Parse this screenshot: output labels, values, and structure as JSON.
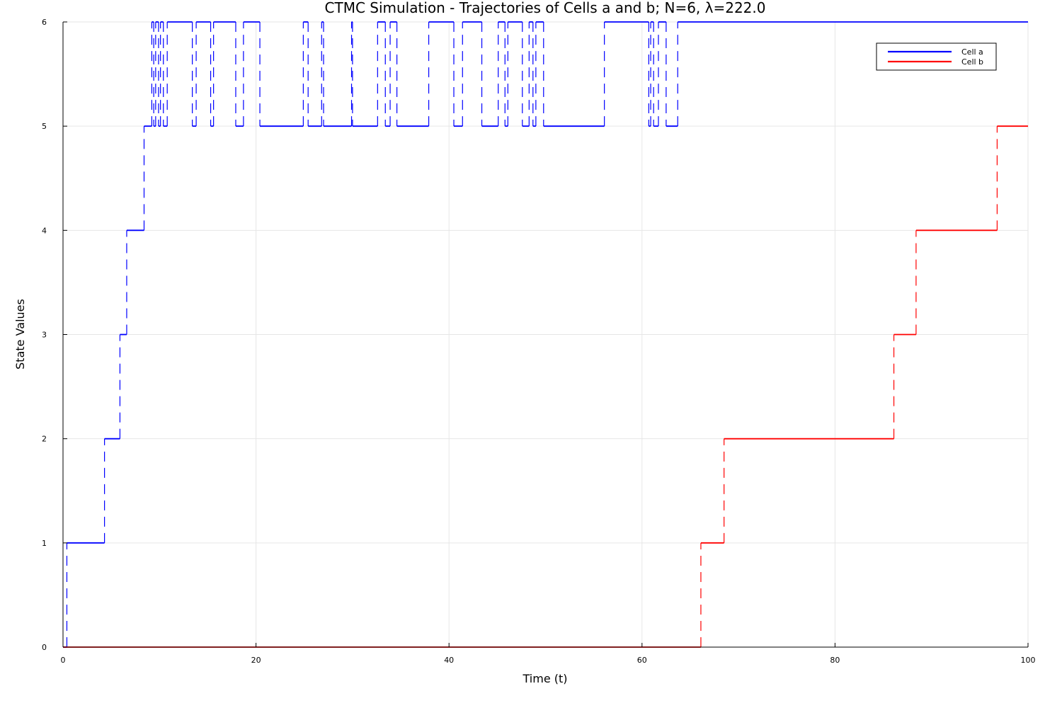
{
  "chart_data": {
    "type": "line",
    "step": "post",
    "title": "CTMC Simulation - Trajectories of Cells a and b; N=6, λ=222.0",
    "xlabel": "Time (t)",
    "ylabel": "State Values",
    "xlim": [
      0,
      100
    ],
    "ylim": [
      0,
      6
    ],
    "xticks": [
      0,
      20,
      40,
      60,
      80,
      100
    ],
    "yticks": [
      0,
      1,
      2,
      3,
      4,
      5,
      6
    ],
    "grid": true,
    "legend": "top-right",
    "series": [
      {
        "name": "Cell a",
        "color": "#0000ff",
        "x": [
          0,
          0.4,
          4.3,
          5.9,
          6.6,
          8.4,
          9.2,
          9.4,
          9.6,
          9.9,
          10.1,
          10.4,
          10.8,
          13.4,
          13.8,
          15.3,
          15.6,
          17.9,
          18.7,
          20.4,
          24.9,
          25.4,
          26.8,
          27.0,
          29.9,
          30.0,
          32.6,
          33.4,
          33.9,
          34.6,
          37.9,
          40.5,
          41.4,
          43.4,
          45.1,
          45.8,
          46.1,
          47.6,
          48.3,
          48.7,
          49.0,
          49.8,
          56.1,
          60.7,
          60.9,
          61.2,
          61.7,
          62.5,
          63.7,
          100
        ],
        "y": [
          0,
          1,
          2,
          3,
          4,
          5,
          6,
          5,
          6,
          5,
          6,
          5,
          6,
          5,
          6,
          5,
          6,
          5,
          6,
          5,
          6,
          5,
          6,
          5,
          6,
          5,
          6,
          5,
          6,
          5,
          6,
          5,
          6,
          5,
          6,
          5,
          6,
          5,
          6,
          5,
          6,
          5,
          6,
          5,
          6,
          5,
          6,
          5,
          6,
          6
        ]
      },
      {
        "name": "Cell b",
        "color": "#ff0000",
        "x": [
          0,
          66.1,
          68.5,
          86.1,
          88.4,
          96.8,
          100
        ],
        "y": [
          0,
          1,
          2,
          3,
          4,
          5,
          5
        ]
      }
    ]
  }
}
